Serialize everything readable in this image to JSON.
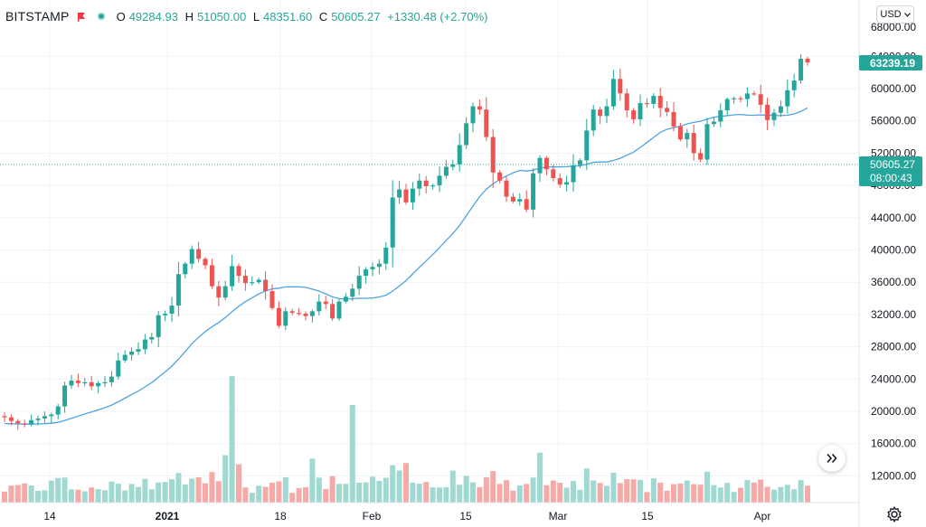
{
  "header": {
    "symbol": "BITSTAMP",
    "open_label": "O",
    "open": "49284.93",
    "high_label": "H",
    "high": "51050.00",
    "low_label": "L",
    "low": "48351.60",
    "close_label": "C",
    "close": "50605.27",
    "change": "+1330.48 (+2.70%)"
  },
  "currency_selector": {
    "label": "USD"
  },
  "price_scale": {
    "labels": [
      "64000.00",
      "60000.00",
      "56000.00",
      "52000.00",
      "48000.00",
      "44000.00",
      "40000.00",
      "36000.00",
      "32000.00",
      "28000.00",
      "24000.00",
      "20000.00",
      "16000.00",
      "12000.00"
    ],
    "top_label": "68000.00",
    "last_price_label": "63239.19",
    "crosshair_price_label": "50605.27",
    "crosshair_time_label": "08:00:43"
  },
  "time_scale": {
    "labels": [
      "14",
      "2021",
      "18",
      "Feb",
      "15",
      "Mar",
      "15",
      "Apr"
    ]
  },
  "colors": {
    "up": "#26a69a",
    "down": "#ef5350",
    "up_volume": "#9fd9d1",
    "down_volume": "#f5aaa8",
    "ma_line": "#4fa3e0",
    "grid": "#f0f3fa",
    "crosshair_line": "#26a69a"
  },
  "icons": {
    "flag": "flag-icon",
    "status": "status-dot-icon",
    "dropdown": "chevron-down-icon",
    "scroll": "scroll-to-realtime-icon",
    "settings": "gear-icon"
  },
  "chart_data": {
    "type": "candlestick",
    "exchange": "BITSTAMP",
    "currency": "USD",
    "x_axis_ticks": [
      "14",
      "2021",
      "18",
      "Feb",
      "15",
      "Mar",
      "15",
      "Apr"
    ],
    "y_range": [
      10000,
      68000
    ],
    "grid": true,
    "close_values": [
      19250,
      18800,
      18500,
      18400,
      18900,
      19100,
      19400,
      19600,
      20600,
      23200,
      23800,
      23500,
      23600,
      23100,
      23500,
      23600,
      24300,
      26300,
      27000,
      27400,
      27700,
      28900,
      29200,
      31900,
      32100,
      33100,
      37000,
      38300,
      40100,
      38900,
      38100,
      35500,
      34100,
      35500,
      38000,
      36800,
      35900,
      36000,
      36300,
      34900,
      32800,
      30600,
      32400,
      32200,
      32100,
      31800,
      32400,
      33600,
      33300,
      31500,
      33600,
      34200,
      35200,
      36800,
      37600,
      37900,
      38300,
      40300,
      46500,
      47500,
      45900,
      47600,
      48600,
      47900,
      48000,
      49200,
      50300,
      50600,
      53000,
      55700,
      57800,
      57400,
      54000,
      49600,
      48600,
      46600,
      46000,
      46300,
      45000,
      49500,
      51400,
      50000,
      48900,
      48100,
      48400,
      50500,
      51100,
      54800,
      57400,
      56600,
      57800,
      61200,
      59400,
      57300,
      56200,
      58200,
      58100,
      59100,
      57600,
      57100,
      55300,
      53700,
      54500,
      52000,
      51200,
      55600,
      55900,
      57300,
      58700,
      58800,
      58700,
      59400,
      59300,
      58000,
      56100,
      57000,
      57800,
      59800,
      61000,
      63700,
      63239
    ]
  }
}
